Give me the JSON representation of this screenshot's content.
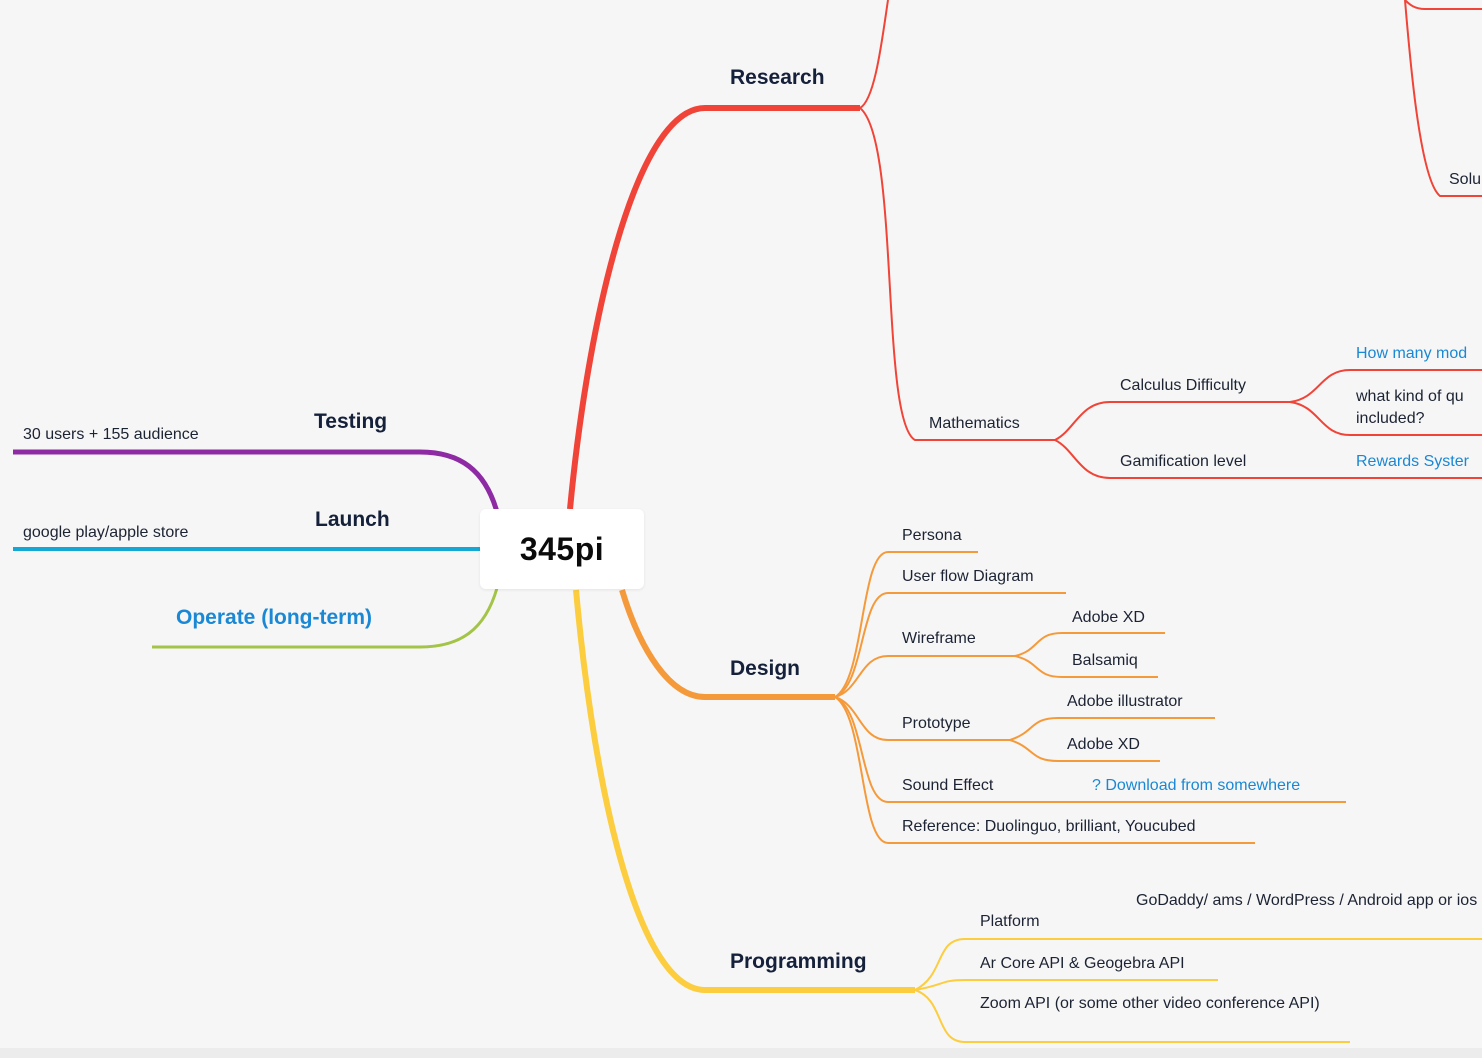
{
  "map": {
    "root": "345pi",
    "branches": {
      "research": {
        "label": "Research",
        "color": "#f04438",
        "partial_top": "Solu",
        "mathematics": {
          "label": "Mathematics",
          "calculus_difficulty": {
            "label": "Calculus Difficulty",
            "q1": "How many mod",
            "q2": "what kind of qu included?"
          },
          "gamification_level": {
            "label": "Gamification level",
            "rewards": "Rewards Syster"
          }
        }
      },
      "design": {
        "label": "Design",
        "color": "#f59a3b",
        "persona": "Persona",
        "user_flow": "User flow Diagram",
        "wireframe": {
          "label": "Wireframe",
          "adobe_xd": "Adobe XD",
          "balsamiq": "Balsamiq"
        },
        "prototype": {
          "label": "Prototype",
          "adobe_illustrator": "Adobe illustrator",
          "adobe_xd": "Adobe XD"
        },
        "sound_effect": {
          "label": "Sound Effect",
          "note": "? Download from somewhere"
        },
        "reference": "Reference: Duolinguo, brilliant, Youcubed"
      },
      "programming": {
        "label": "Programming",
        "color": "#fbcd3f",
        "platform": {
          "label": "Platform",
          "options": "GoDaddy/ ams / WordPress / Android app or ios"
        },
        "ar_core": "Ar Core API & Geogebra API",
        "zoom": "Zoom API (or some other video conference API)"
      },
      "testing": {
        "label": "Testing",
        "color": "#8e2aa3",
        "detail": "30 users + 155 audience"
      },
      "launch": {
        "label": "Launch",
        "color": "#15a7d4",
        "detail": "google play/apple store"
      },
      "operate": {
        "label": "Operate (long-term)",
        "color": "#a3c447"
      }
    }
  }
}
